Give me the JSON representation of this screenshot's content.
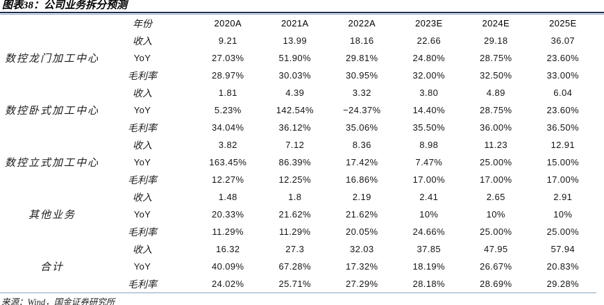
{
  "title": "图表38：公司业务拆分预测",
  "source": "来源：Wind，国金证券研究所",
  "colors": {
    "title_rule": "#1e2f50",
    "table_border": "#87a3c0",
    "text": "#141414",
    "background": "#ffffff"
  },
  "table": {
    "metric_header": "年份",
    "columns": [
      "2020A",
      "2021A",
      "2022A",
      "2023E",
      "2024E",
      "2025E"
    ],
    "segments": [
      {
        "name": "数控龙门加工中心",
        "rows": [
          {
            "metric": "收入",
            "values": [
              "9.21",
              "13.99",
              "18.16",
              "22.66",
              "29.18",
              "36.07"
            ]
          },
          {
            "metric": "YoY",
            "values": [
              "27.03%",
              "51.90%",
              "29.81%",
              "24.80%",
              "28.75%",
              "23.60%"
            ]
          },
          {
            "metric": "毛利率",
            "values": [
              "28.97%",
              "30.03%",
              "30.95%",
              "32.00%",
              "32.50%",
              "33.00%"
            ]
          }
        ]
      },
      {
        "name": "数控卧式加工中心",
        "rows": [
          {
            "metric": "收入",
            "values": [
              "1.81",
              "4.39",
              "3.32",
              "3.80",
              "4.89",
              "6.04"
            ]
          },
          {
            "metric": "YoY",
            "values": [
              "5.23%",
              "142.54%",
              "−24.37%",
              "14.40%",
              "28.75%",
              "23.60%"
            ]
          },
          {
            "metric": "毛利率",
            "values": [
              "34.04%",
              "36.12%",
              "35.06%",
              "35.50%",
              "36.00%",
              "36.50%"
            ]
          }
        ]
      },
      {
        "name": "数控立式加工中心",
        "rows": [
          {
            "metric": "收入",
            "values": [
              "3.82",
              "7.12",
              "8.36",
              "8.98",
              "11.23",
              "12.91"
            ]
          },
          {
            "metric": "YoY",
            "values": [
              "163.45%",
              "86.39%",
              "17.42%",
              "7.47%",
              "25.00%",
              "15.00%"
            ]
          },
          {
            "metric": "毛利率",
            "values": [
              "12.27%",
              "12.25%",
              "16.86%",
              "17.00%",
              "17.00%",
              "17.00%"
            ]
          }
        ]
      },
      {
        "name": "其他业务",
        "rows": [
          {
            "metric": "收入",
            "values": [
              "1.48",
              "1.8",
              "2.19",
              "2.41",
              "2.65",
              "2.91"
            ]
          },
          {
            "metric": "YoY",
            "values": [
              "20.33%",
              "21.62%",
              "21.62%",
              "10%",
              "10%",
              "10%"
            ]
          },
          {
            "metric": "毛利率",
            "values": [
              "11.29%",
              "11.29%",
              "20.05%",
              "24.66%",
              "25.00%",
              "25.00%"
            ]
          }
        ]
      },
      {
        "name": "合计",
        "rows": [
          {
            "metric": "收入",
            "values": [
              "16.32",
              "27.3",
              "32.03",
              "37.85",
              "47.95",
              "57.94"
            ]
          },
          {
            "metric": "YoY",
            "values": [
              "40.09%",
              "67.28%",
              "17.32%",
              "18.19%",
              "26.67%",
              "20.83%"
            ]
          },
          {
            "metric": "毛利率",
            "values": [
              "24.02%",
              "25.71%",
              "27.29%",
              "28.18%",
              "28.69%",
              "29.28%"
            ]
          }
        ]
      }
    ]
  }
}
